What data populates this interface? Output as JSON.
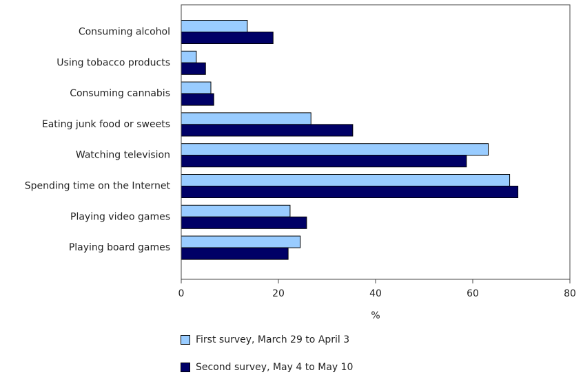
{
  "chart_data": {
    "type": "bar",
    "orientation": "horizontal",
    "categories": [
      "Consuming alcohol",
      "Using tobacco products",
      "Consuming cannabis",
      "Eating junk food or sweets",
      "Watching television",
      "Spending time on the Internet",
      "Playing video games",
      "Playing board games"
    ],
    "series": [
      {
        "name": "First survey, March 29 to April 3",
        "color": "#99ccff",
        "values": [
          13.6,
          3.1,
          6.1,
          26.7,
          63.2,
          67.6,
          22.4,
          24.5
        ]
      },
      {
        "name": "Second survey, May 4 to May 10",
        "color": "#000066",
        "values": [
          18.9,
          5.0,
          6.7,
          35.3,
          58.7,
          69.3,
          25.8,
          22.0
        ]
      }
    ],
    "xlim": [
      0,
      80
    ],
    "xticks": [
      "0",
      "20",
      "40",
      "60",
      "80"
    ],
    "xlabel": "%",
    "legend_position": "bottom",
    "grid": false
  }
}
